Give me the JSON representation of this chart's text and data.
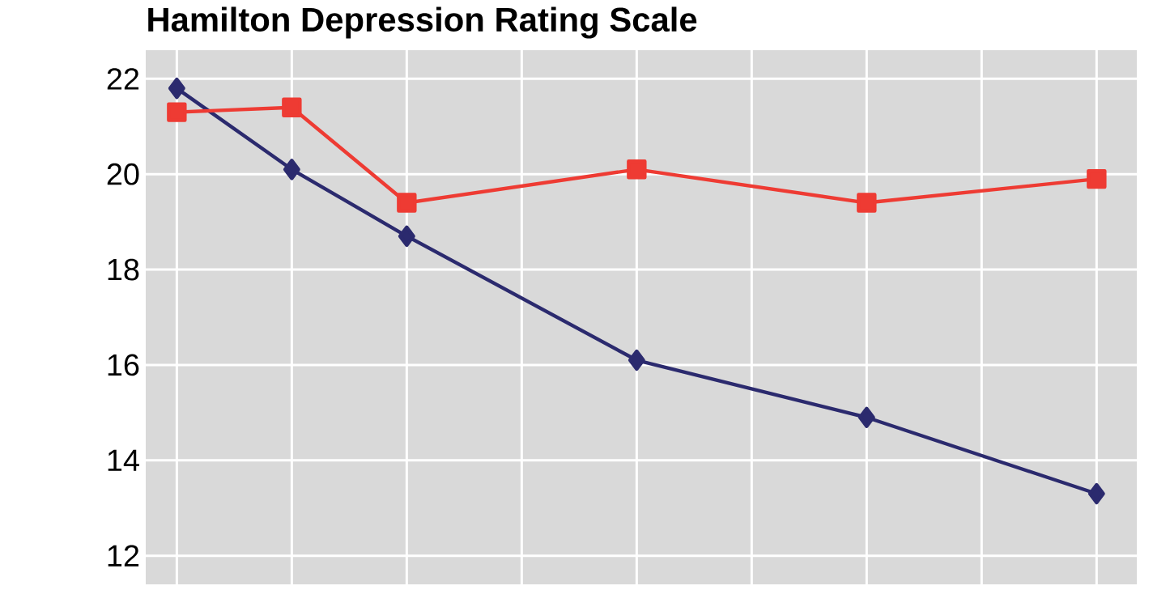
{
  "chart_data": {
    "type": "line",
    "title": "Hamilton Depression Rating Scale",
    "categories": [
      null,
      null,
      null,
      null,
      null,
      null,
      null,
      null,
      null
    ],
    "series": [
      {
        "color": "#2b2a6e",
        "marker": "diamond",
        "values": [
          21.8,
          20.1,
          18.7,
          null,
          16.1,
          null,
          14.9,
          null,
          13.3
        ]
      },
      {
        "color": "#ee3b33",
        "marker": "square",
        "values": [
          21.3,
          21.4,
          19.4,
          null,
          20.1,
          null,
          19.4,
          null,
          19.9
        ]
      }
    ],
    "ylim": [
      11.4,
      22.6
    ],
    "yticks": [
      12,
      14,
      16,
      18,
      20,
      22
    ],
    "grid": true,
    "tick_labels": "y"
  }
}
